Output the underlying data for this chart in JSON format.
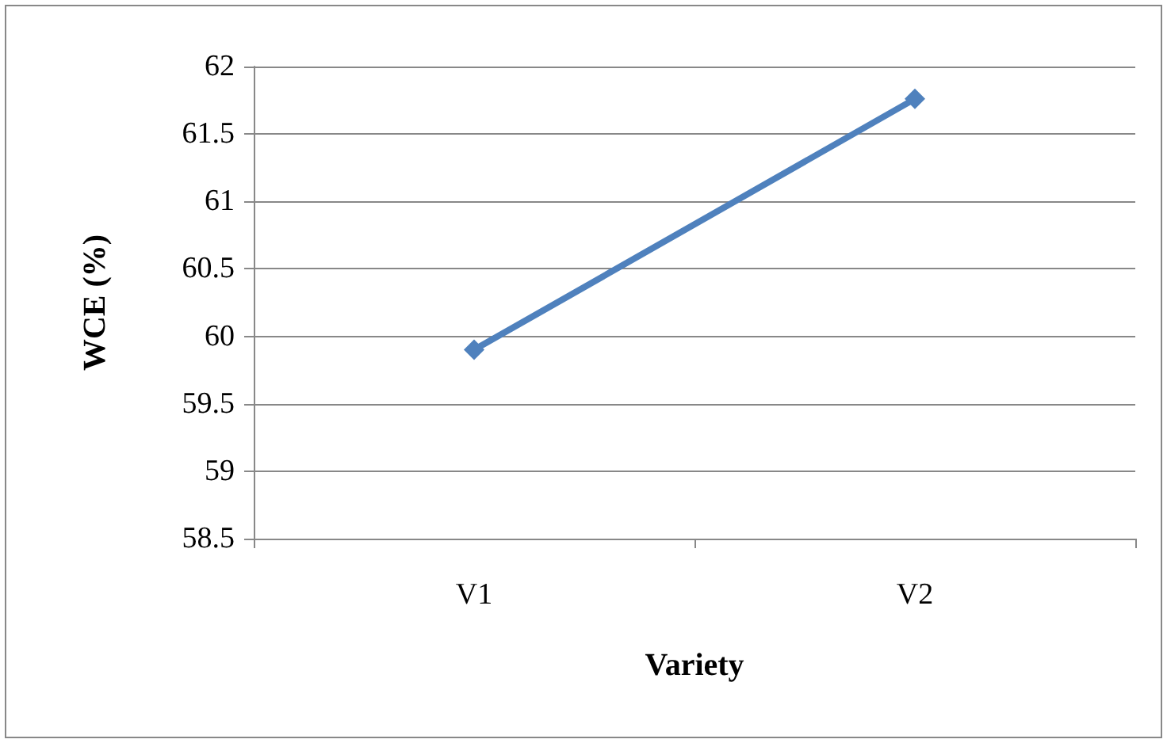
{
  "chart_data": {
    "type": "line",
    "xlabel": "Variety",
    "ylabel": "WCE (%)",
    "categories": [
      "V1",
      "V2"
    ],
    "series": [
      {
        "color": "#4f81bd",
        "values": [
          59.9,
          61.76
        ]
      }
    ],
    "ylim": [
      58.5,
      62
    ],
    "yticks": [
      58.5,
      59,
      59.5,
      60,
      60.5,
      61,
      61.5,
      62
    ],
    "grid": "y",
    "marker": "diamond",
    "line_style": "solid"
  }
}
